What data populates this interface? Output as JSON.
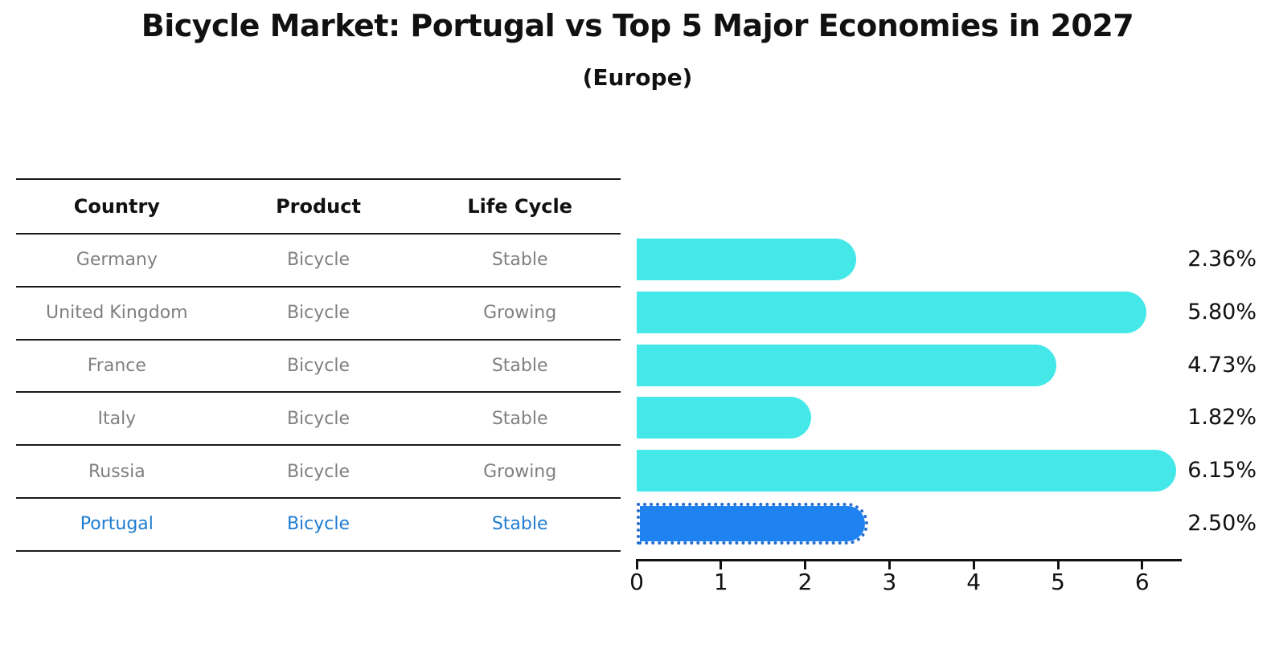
{
  "title": "Bicycle Market: Portugal vs Top 5 Major Economies in 2027",
  "subtitle": "(Europe)",
  "table": {
    "headers": [
      "Country",
      "Product",
      "Life Cycle"
    ],
    "rows": [
      {
        "country": "Germany",
        "product": "Bicycle",
        "life_cycle": "Stable",
        "highlight": false
      },
      {
        "country": "United Kingdom",
        "product": "Bicycle",
        "life_cycle": "Growing",
        "highlight": false
      },
      {
        "country": "France",
        "product": "Bicycle",
        "life_cycle": "Stable",
        "highlight": false
      },
      {
        "country": "Italy",
        "product": "Bicycle",
        "life_cycle": "Stable",
        "highlight": false
      },
      {
        "country": "Russia",
        "product": "Bicycle",
        "life_cycle": "Growing",
        "highlight": false
      },
      {
        "country": "Portugal",
        "product": "Bicycle",
        "life_cycle": "Stable",
        "highlight": true
      }
    ]
  },
  "chart_data": {
    "type": "bar",
    "orientation": "horizontal",
    "categories": [
      "Germany",
      "United Kingdom",
      "France",
      "Italy",
      "Russia",
      "Portugal"
    ],
    "values": [
      2.36,
      5.8,
      4.73,
      1.82,
      6.15,
      2.5
    ],
    "value_labels": [
      "2.36%",
      "5.80%",
      "4.73%",
      "1.82%",
      "6.15%",
      "2.50%"
    ],
    "highlight_index": 5,
    "x_ticks": [
      "0",
      "1",
      "2",
      "3",
      "4",
      "5",
      "6"
    ],
    "xlim": [
      0,
      6.46
    ],
    "grid": false,
    "legend": false,
    "bar_color": "#45E8E8",
    "highlight_color": "#1E82F0"
  },
  "colors": {
    "title_text": "#111111",
    "row_text": "#808080",
    "highlight_text": "#1f7cd2",
    "axis": "#111111"
  }
}
